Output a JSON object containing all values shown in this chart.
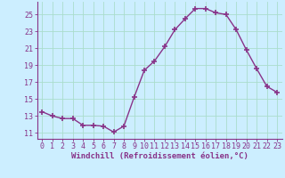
{
  "x": [
    0,
    1,
    2,
    3,
    4,
    5,
    6,
    7,
    8,
    9,
    10,
    11,
    12,
    13,
    14,
    15,
    16,
    17,
    18,
    19,
    20,
    21,
    22,
    23
  ],
  "y": [
    13.5,
    13.0,
    12.7,
    12.7,
    11.9,
    11.9,
    11.8,
    11.1,
    11.8,
    15.2,
    18.4,
    19.5,
    21.2,
    23.2,
    24.5,
    25.7,
    25.7,
    25.2,
    25.0,
    23.2,
    20.8,
    18.6,
    16.5,
    15.8
  ],
  "line_color": "#883388",
  "marker": "+",
  "marker_size": 4,
  "marker_lw": 1.2,
  "background_color": "#cceeff",
  "grid_color": "#aaddcc",
  "xlabel": "Windchill (Refroidissement éolien,°C)",
  "xlabel_fontsize": 6.5,
  "ylabel_ticks": [
    11,
    13,
    15,
    17,
    19,
    21,
    23,
    25
  ],
  "xlim": [
    -0.5,
    23.5
  ],
  "ylim": [
    10.3,
    26.5
  ],
  "tick_fontsize": 6.0,
  "tick_color": "#883388",
  "spine_color": "#883388",
  "label_color": "#883388",
  "linewidth": 1.0
}
